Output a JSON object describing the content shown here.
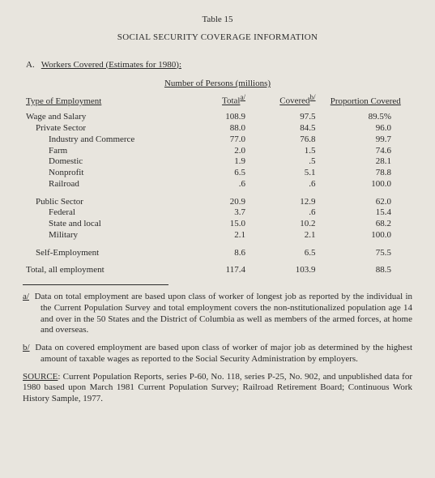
{
  "table_number": "Table 15",
  "title": "SOCIAL SECURITY COVERAGE INFORMATION",
  "section": {
    "prefix": "A.",
    "text": "Workers Covered (Estimates for 1980):"
  },
  "columns": {
    "group_header": "Number of Persons (millions)",
    "type": "Type of Employment",
    "total": "Total",
    "total_note": "a/",
    "covered": "Covered",
    "covered_note": "b/",
    "proportion": "Proportion Covered"
  },
  "rows": [
    {
      "label": "Wage and Salary",
      "indent": 0,
      "total": "108.9",
      "covered": "97.5",
      "prop": "89.5%"
    },
    {
      "label": "Private Sector",
      "indent": 1,
      "total": "88.0",
      "covered": "84.5",
      "prop": "96.0"
    },
    {
      "label": "Industry and Commerce",
      "indent": 2,
      "total": "77.0",
      "covered": "76.8",
      "prop": "99.7"
    },
    {
      "label": "Farm",
      "indent": 2,
      "total": "2.0",
      "covered": "1.5",
      "prop": "74.6"
    },
    {
      "label": "Domestic",
      "indent": 2,
      "total": "1.9",
      "covered": ".5",
      "prop": "28.1"
    },
    {
      "label": "Nonprofit",
      "indent": 2,
      "total": "6.5",
      "covered": "5.1",
      "prop": "78.8"
    },
    {
      "label": "Railroad",
      "indent": 2,
      "total": ".6",
      "covered": ".6",
      "prop": "100.0"
    }
  ],
  "rows2": [
    {
      "label": "Public Sector",
      "indent": 1,
      "total": "20.9",
      "covered": "12.9",
      "prop": "62.0"
    },
    {
      "label": "Federal",
      "indent": 2,
      "total": "3.7",
      "covered": ".6",
      "prop": "15.4"
    },
    {
      "label": "State and local",
      "indent": 2,
      "total": "15.0",
      "covered": "10.2",
      "prop": "68.2"
    },
    {
      "label": "Military",
      "indent": 2,
      "total": "2.1",
      "covered": "2.1",
      "prop": "100.0"
    }
  ],
  "rows3": [
    {
      "label": "Self-Employment",
      "indent": 1,
      "total": "8.6",
      "covered": "6.5",
      "prop": "75.5"
    }
  ],
  "rows4": [
    {
      "label": "Total, all employment",
      "indent": 0,
      "total": "117.4",
      "covered": "103.9",
      "prop": "88.5"
    }
  ],
  "footnotes": {
    "a_mark": "a/",
    "a_text": "Data on total employment are based upon class of worker of longest job as reported by the individual in the Current Population Survey and total employment covers the non-nstitutionalized population age 14 and over in the 50 States and the District of Columbia as well as members of the armed forces, at home and overseas.",
    "b_mark": "b/",
    "b_text": "Data on covered employment are based upon class of worker of major job as determined by the highest amount of taxable wages as reported to the Social Security Administration by employers."
  },
  "source": {
    "label": "SOURCE",
    "text": ": Current Population Reports, series P-60, No. 118, series P-25, No. 902, and unpublished data for 1980 based upon March 1981 Current Population Survey; Railroad Retirement Board; Continuous Work History Sample, 1977."
  }
}
